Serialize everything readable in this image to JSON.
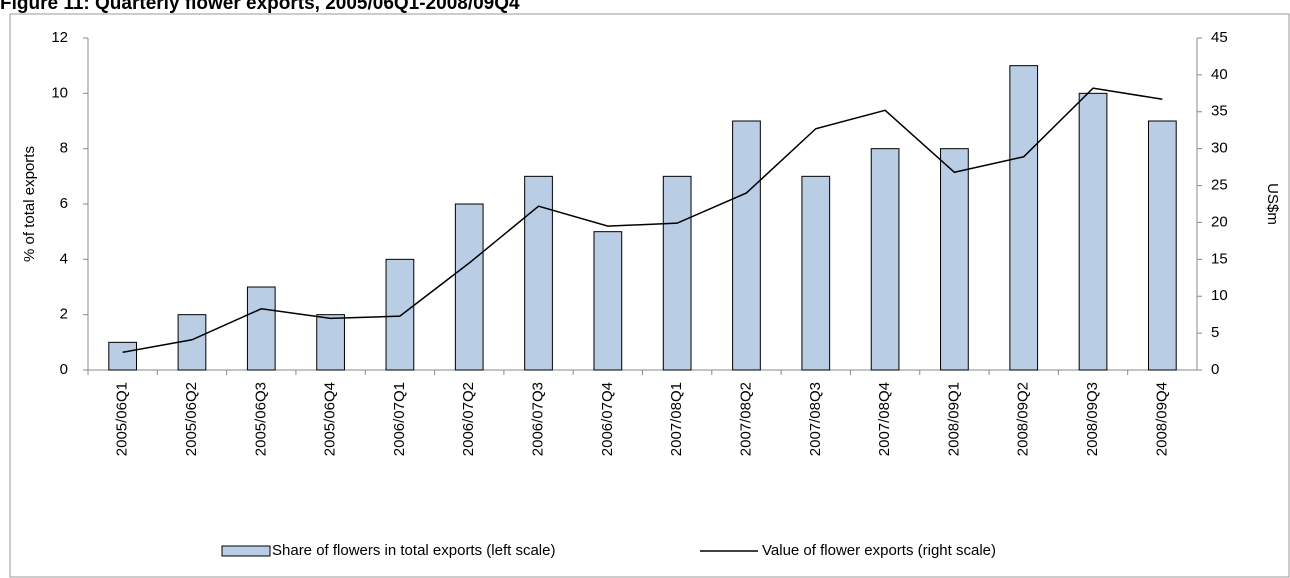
{
  "chart_data": {
    "type": "bar-line",
    "title": "Figure 11: Quarterly flower exports, 2005/06Q1-2008/09Q4",
    "y_label": "% of total exports",
    "y2_label": "US$m",
    "categories": [
      "2005/06Q1",
      "2005/06Q2",
      "2005/06Q3",
      "2005/06Q4",
      "2006/07Q1",
      "2006/07Q2",
      "2006/07Q3",
      "2006/07Q4",
      "2007/08Q1",
      "2007/08Q2",
      "2007/08Q3",
      "2007/08Q4",
      "2008/09Q1",
      "2008/09Q2",
      "2008/09Q3",
      "2008/09Q4"
    ],
    "series": [
      {
        "name": "Share of flowers in total exports (left scale)",
        "type": "bar",
        "color": "#b9cde5",
        "values": [
          1,
          2,
          3,
          2,
          4,
          6,
          7,
          5,
          7,
          9,
          7,
          8,
          8,
          11,
          10,
          9
        ]
      },
      {
        "name": "Value of flower exports (right scale)",
        "type": "line",
        "color": "#000000",
        "axis": "y2",
        "values": [
          2.4,
          4.1,
          8.3,
          7.0,
          7.3,
          14.5,
          22.2,
          19.5,
          19.9,
          24.0,
          32.7,
          35.2,
          26.8,
          28.9,
          38.2,
          36.7
        ]
      }
    ],
    "ylim": [
      0,
      12
    ],
    "yticks": [
      0,
      2,
      4,
      6,
      8,
      10,
      12
    ],
    "y2lim": [
      0,
      45
    ],
    "y2ticks": [
      0,
      5,
      10,
      15,
      20,
      25,
      30,
      35,
      40,
      45
    ],
    "legend": "bottom",
    "grid": false
  }
}
